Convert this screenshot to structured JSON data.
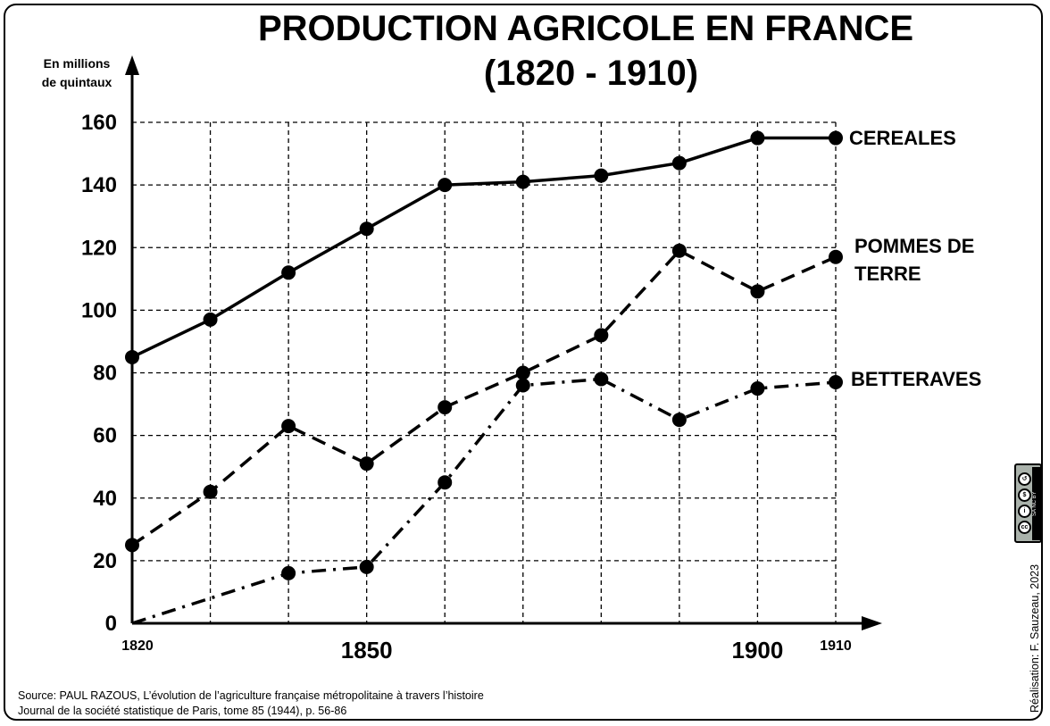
{
  "chart_data": {
    "type": "line",
    "title": [
      "PRODUCTION AGRICOLE EN FRANCE",
      "(1820 - 1910)"
    ],
    "ylabel": [
      "En millions",
      "de quintaux"
    ],
    "xlabel": "",
    "xlim": [
      1820,
      1910
    ],
    "ylim": [
      0,
      160
    ],
    "yticks": [
      0,
      20,
      40,
      60,
      80,
      100,
      120,
      140,
      160
    ],
    "xtick_labels": [
      {
        "value": 1820,
        "label": "1820",
        "size": "small"
      },
      {
        "value": 1850,
        "label": "1850",
        "size": "large"
      },
      {
        "value": 1900,
        "label": "1900",
        "size": "large"
      },
      {
        "value": 1910,
        "label": "1910",
        "size": "small"
      }
    ],
    "x_grid": [
      1830,
      1840,
      1850,
      1860,
      1870,
      1880,
      1890,
      1900,
      1910
    ],
    "grid": true,
    "series": [
      {
        "name": "CEREALES",
        "style": "solid",
        "x": [
          1820,
          1830,
          1840,
          1850,
          1860,
          1870,
          1880,
          1890,
          1900,
          1910
        ],
        "y": [
          85,
          97,
          112,
          126,
          140,
          141,
          143,
          147,
          155,
          155
        ],
        "markers": [
          true,
          true,
          true,
          true,
          true,
          true,
          true,
          true,
          true,
          true
        ]
      },
      {
        "name": "POMMES DE TERRE",
        "label_lines": [
          "POMMES DE",
          "TERRE"
        ],
        "style": "dashed",
        "x": [
          1820,
          1830,
          1840,
          1850,
          1860,
          1870,
          1880,
          1890,
          1900,
          1910
        ],
        "y": [
          25,
          42,
          63,
          51,
          69,
          80,
          92,
          119,
          106,
          117
        ],
        "markers": [
          true,
          true,
          true,
          true,
          true,
          true,
          true,
          true,
          true,
          true
        ]
      },
      {
        "name": "BETTERAVES",
        "style": "dashdot",
        "x": [
          1820,
          1830,
          1840,
          1850,
          1860,
          1870,
          1880,
          1890,
          1900,
          1910
        ],
        "y": [
          0,
          8,
          16,
          18,
          45,
          76,
          78,
          65,
          75,
          77
        ],
        "markers": [
          false,
          false,
          true,
          true,
          true,
          true,
          true,
          true,
          true,
          true
        ]
      }
    ]
  },
  "source_lines": [
    "Source: PAUL RAZOUS, L’évolution de l’agriculture française métropolitaine à travers l’histoire",
    "Journal de la société statistique de Paris, tome 85 (1944), p. 56-86"
  ],
  "credit": "Réalisation: F. Sauzeau, 2023",
  "license_badge": {
    "icons": [
      "cc-icon",
      "by-icon",
      "nc-icon",
      "sa-icon"
    ],
    "labels": [
      "cc",
      "BY",
      "NC",
      "SA"
    ]
  },
  "colors": {
    "ink": "#000000",
    "grid": "#000000",
    "badge": "#aab2ab"
  }
}
